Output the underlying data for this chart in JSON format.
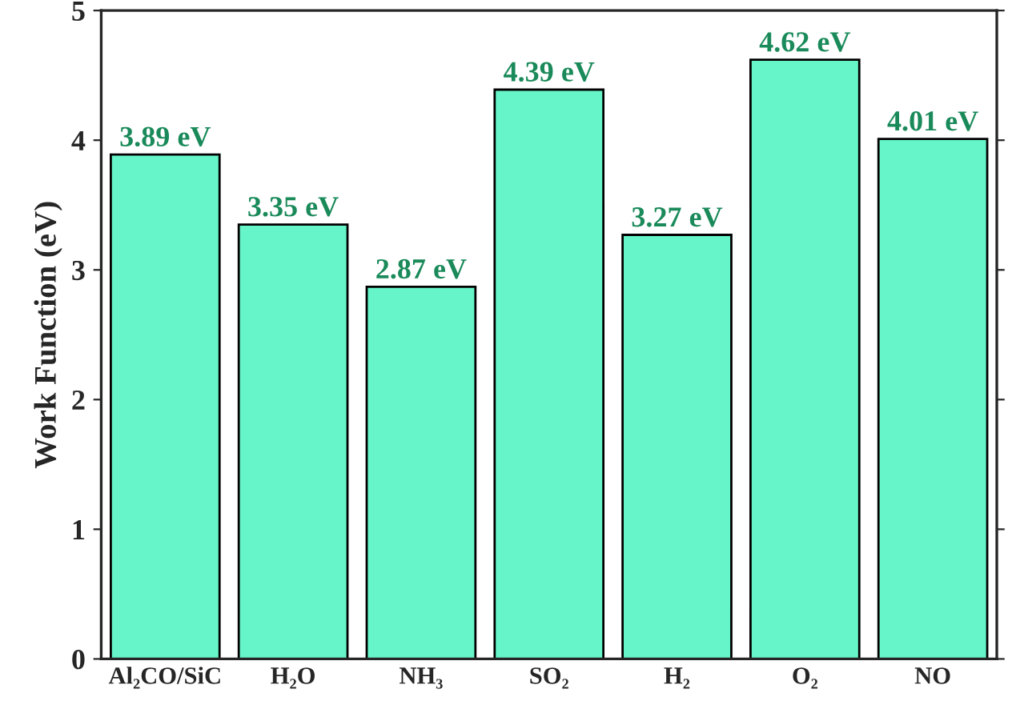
{
  "chart_data": {
    "type": "bar",
    "ylabel": "Work Function (eV)",
    "categories": [
      "Al₂CO/SiC",
      "H₂O",
      "NH₃",
      "SO₂",
      "H₂",
      "O₂",
      "NO"
    ],
    "values": [
      3.89,
      3.35,
      2.87,
      4.39,
      3.27,
      4.62,
      4.01
    ],
    "value_labels": [
      "3.89 eV",
      "3.35 eV",
      "2.87 eV",
      "4.39 eV",
      "3.27 eV",
      "4.62 eV",
      "4.01 eV"
    ],
    "color": "#66f5c8",
    "ylim": [
      0,
      5
    ],
    "yticks": [
      0,
      1,
      2,
      3,
      4,
      5
    ],
    "grid": false,
    "legend": false
  }
}
